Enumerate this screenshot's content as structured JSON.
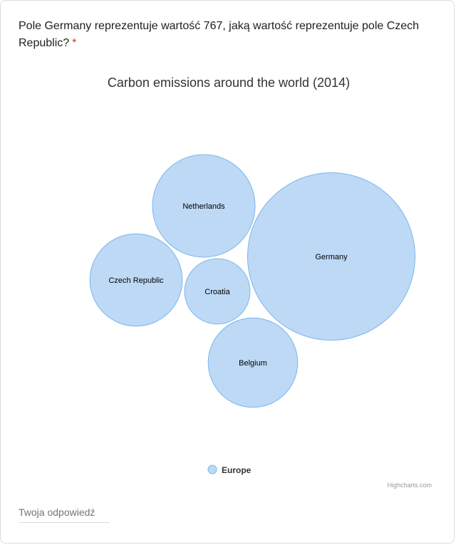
{
  "question": {
    "text": "Pole Germany reprezentuje wartość 767, jaką wartość reprezentuje pole Czech Republic?",
    "required_mark": "*"
  },
  "chart_data": {
    "type": "packed-bubble",
    "title": "Carbon emissions around the world (2014)",
    "series": [
      {
        "name": "Europe",
        "color": "#bdd9f5",
        "stroke": "#7cb5ec",
        "data": [
          {
            "name": "Germany",
            "value": 767
          },
          {
            "name": "Netherlands",
            "value": 288
          },
          {
            "name": "Belgium",
            "value": 219
          },
          {
            "name": "Czech Republic",
            "value": 233
          },
          {
            "name": "Croatia",
            "value": 117
          }
        ]
      }
    ],
    "legend_position": "bottom-center",
    "credits": "Highcharts.com"
  },
  "answer": {
    "placeholder": "Twoja odpowiedź"
  }
}
